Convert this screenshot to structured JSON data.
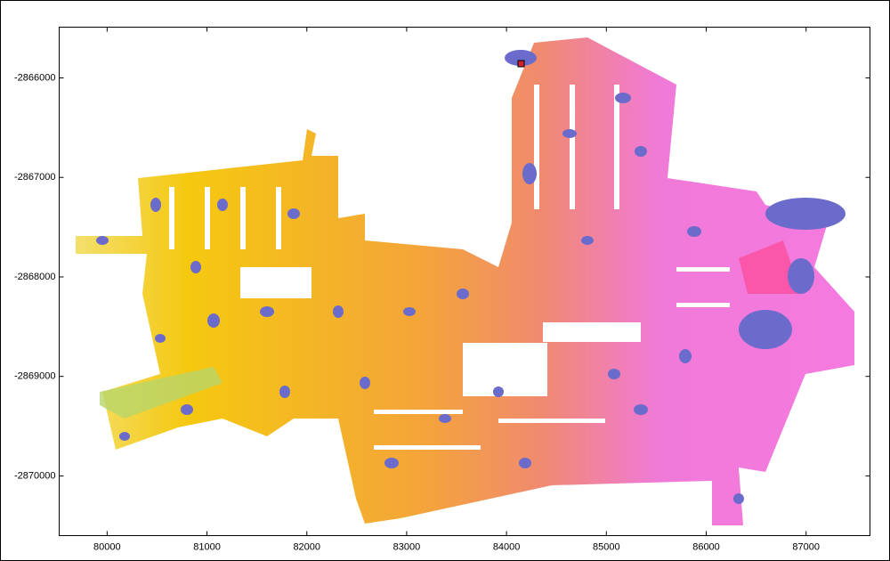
{
  "chart_data": {
    "type": "map",
    "xlim": [
      79520,
      87640
    ],
    "ylim": [
      -2870600,
      -2865490
    ],
    "xticks": [
      80000,
      81000,
      82000,
      83000,
      84000,
      85000,
      86000,
      87000
    ],
    "yticks": [
      -2866000,
      -2867000,
      -2868000,
      -2869000,
      -2870000
    ]
  }
}
